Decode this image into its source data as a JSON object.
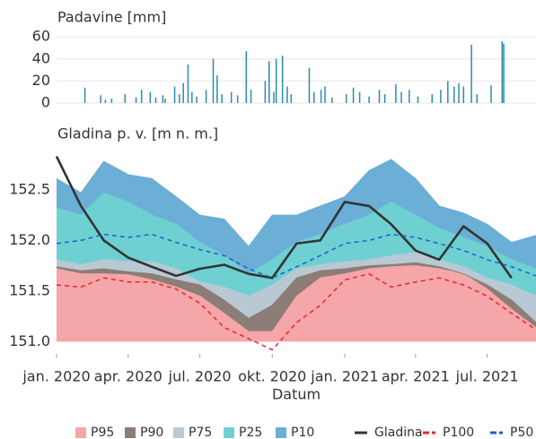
{
  "chart_data": [
    {
      "type": "bar",
      "title": "Padavine [mm]",
      "color": "#2a8da8",
      "xlim": [
        "2020-01-01",
        "2021-09-01"
      ],
      "ylim": [
        0,
        65
      ],
      "yticks": [
        0,
        20,
        40,
        60
      ],
      "grid": true,
      "x": [
        "2020-02-06",
        "2020-02-26",
        "2020-03-03",
        "2020-03-11",
        "2020-03-28",
        "2020-04-11",
        "2020-04-18",
        "2020-04-29",
        "2020-05-06",
        "2020-05-15",
        "2020-05-18",
        "2020-05-30",
        "2020-06-05",
        "2020-06-10",
        "2020-06-16",
        "2020-06-21",
        "2020-06-27",
        "2020-07-09",
        "2020-07-18",
        "2020-07-23",
        "2020-07-29",
        "2020-08-10",
        "2020-08-18",
        "2020-08-29",
        "2020-09-04",
        "2020-09-22",
        "2020-09-27",
        "2020-10-03",
        "2020-10-06",
        "2020-10-14",
        "2020-10-20",
        "2020-10-25",
        "2020-11-17",
        "2020-11-23",
        "2020-12-02",
        "2020-12-07",
        "2020-12-16",
        "2021-01-03",
        "2021-01-12",
        "2021-01-20",
        "2021-02-01",
        "2021-02-14",
        "2021-02-21",
        "2021-03-07",
        "2021-03-14",
        "2021-03-24",
        "2021-04-04",
        "2021-04-22",
        "2021-05-03",
        "2021-05-12",
        "2021-05-20",
        "2021-05-26",
        "2021-06-01",
        "2021-06-11",
        "2021-06-18",
        "2021-07-06",
        "2021-07-20",
        "2021-07-22"
      ],
      "values": [
        14,
        7,
        3,
        4,
        8,
        5,
        12,
        10,
        5,
        7,
        4,
        15,
        8,
        18,
        35,
        10,
        6,
        12,
        40,
        25,
        8,
        10,
        7,
        47,
        12,
        20,
        38,
        10,
        40,
        43,
        15,
        8,
        32,
        10,
        12,
        15,
        5,
        8,
        14,
        10,
        6,
        12,
        8,
        17,
        10,
        12,
        6,
        8,
        12,
        20,
        15,
        18,
        15,
        53,
        8,
        16,
        56,
        54
      ]
    },
    {
      "type": "band_line",
      "title": "Gladina p. v. [m n. m.]",
      "xlabel": "Datum",
      "xlim": [
        "2020-01-01",
        "2021-09-01"
      ],
      "ylim": [
        150.88,
        152.87
      ],
      "yticks": [
        {
          "value": 151,
          "label": "151.0"
        },
        151.5,
        {
          "value": 152,
          "label": "152.0"
        },
        152.5
      ],
      "xticks": [
        {
          "value": "2020-01-01",
          "label": "jan. 2020"
        },
        {
          "value": "2020-04-01",
          "label": "apr. 2020"
        },
        {
          "value": "2020-07-01",
          "label": "jul. 2020"
        },
        {
          "value": "2020-10-01",
          "label": "okt. 2020"
        },
        {
          "value": "2021-01-01",
          "label": "jan. 2021"
        },
        {
          "value": "2021-04-01",
          "label": "apr. 2021"
        },
        {
          "value": "2021-07-01",
          "label": "jul. 2021"
        }
      ],
      "x": [
        "2020-01-01",
        "2020-02-01",
        "2020-03-01",
        "2020-04-01",
        "2020-05-01",
        "2020-06-01",
        "2020-07-01",
        "2020-08-01",
        "2020-09-01",
        "2020-10-01",
        "2020-11-01",
        "2020-12-01",
        "2021-01-01",
        "2021-02-01",
        "2021-03-01",
        "2021-04-01",
        "2021-05-01",
        "2021-06-01",
        "2021-07-01",
        "2021-08-01",
        "2021-09-01"
      ],
      "series": [
        {
          "name": "P95",
          "kind": "area",
          "color": "#f5a6a8",
          "values": [
            151.72,
            151.67,
            151.67,
            151.66,
            151.61,
            151.54,
            151.45,
            151.28,
            151.1,
            151.1,
            151.45,
            151.63,
            151.67,
            151.72,
            151.74,
            151.75,
            151.72,
            151.67,
            151.52,
            151.32,
            151.14
          ]
        },
        {
          "name": "P90",
          "kind": "area",
          "color": "#8c7d76",
          "values": [
            151.74,
            151.7,
            151.72,
            151.69,
            151.67,
            151.61,
            151.56,
            151.41,
            151.23,
            151.36,
            151.63,
            151.7,
            151.72,
            151.75,
            151.76,
            151.78,
            151.74,
            151.67,
            151.56,
            151.41,
            151.19
          ]
        },
        {
          "name": "P75",
          "kind": "area",
          "color": "#b8c9d3",
          "values": [
            151.81,
            151.76,
            151.81,
            151.79,
            151.79,
            151.72,
            151.59,
            151.54,
            151.45,
            151.56,
            151.72,
            151.76,
            151.79,
            151.81,
            151.85,
            151.88,
            151.81,
            151.74,
            151.63,
            151.56,
            151.45
          ]
        },
        {
          "name": "P25",
          "kind": "area",
          "color": "#6ed0d0",
          "values": [
            152.32,
            152.25,
            152.47,
            152.38,
            152.25,
            152.16,
            151.98,
            151.85,
            151.67,
            151.81,
            151.98,
            152.06,
            152.16,
            152.25,
            152.38,
            152.25,
            152.12,
            152.03,
            151.94,
            151.81,
            151.72
          ]
        },
        {
          "name": "P10",
          "kind": "area",
          "color": "#6baed6",
          "values": [
            152.61,
            152.47,
            152.78,
            152.65,
            152.61,
            152.43,
            152.25,
            152.21,
            151.94,
            152.25,
            152.25,
            152.34,
            152.43,
            152.69,
            152.8,
            152.61,
            152.34,
            152.27,
            152.16,
            151.98,
            152.05
          ]
        },
        {
          "name": "Gladina",
          "kind": "line",
          "color": "#333333",
          "values": [
            152.83,
            152.34,
            152.0,
            151.83,
            151.74,
            151.65,
            151.72,
            151.76,
            151.67,
            151.63,
            151.97,
            152.0,
            152.38,
            152.34,
            152.16,
            151.9,
            151.81,
            152.14,
            151.97,
            151.63,
            null
          ]
        },
        {
          "name": "P100",
          "kind": "line",
          "dash": true,
          "color": "#e8282b",
          "values": [
            151.56,
            151.54,
            151.63,
            151.59,
            151.59,
            151.52,
            151.38,
            151.14,
            151.03,
            150.92,
            151.19,
            151.36,
            151.61,
            151.67,
            151.54,
            151.59,
            151.63,
            151.56,
            151.45,
            151.28,
            151.12
          ]
        },
        {
          "name": "P50",
          "kind": "line",
          "dash": true,
          "color": "#1f5fd0",
          "values": [
            151.97,
            152.0,
            152.06,
            152.03,
            152.06,
            151.98,
            151.91,
            151.85,
            151.72,
            151.63,
            151.74,
            151.85,
            151.97,
            152.0,
            152.06,
            152.03,
            151.97,
            151.9,
            151.81,
            151.74,
            151.65
          ]
        }
      ]
    }
  ]
}
